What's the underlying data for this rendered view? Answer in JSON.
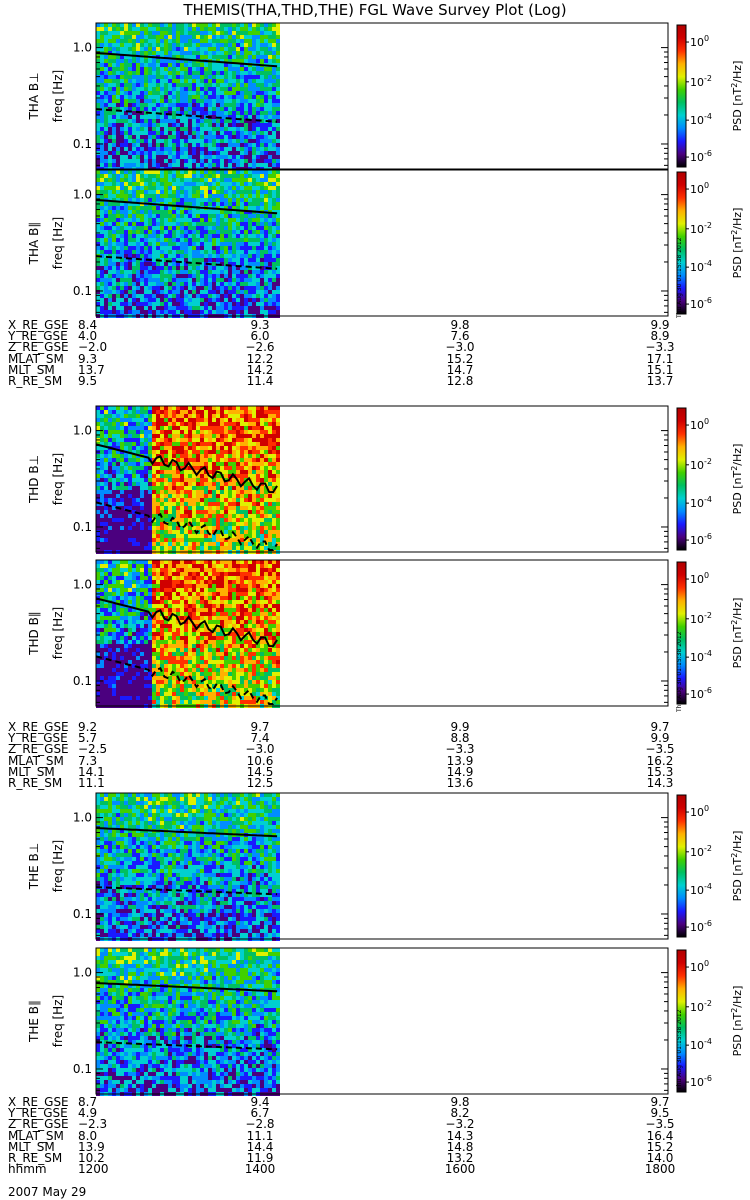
{
  "title": "THEMIS(THA,THD,THE) FGL Wave Survey Plot (Log)",
  "timestamp": "Thu Aug 30 01:15:38 2012",
  "colorbar": {
    "label_main": "PSD [nT",
    "label_sup": "2",
    "label_end": "/Hz]",
    "ticks": [
      {
        "base": "10",
        "exp": "0"
      },
      {
        "base": "10",
        "exp": "-2"
      },
      {
        "base": "10",
        "exp": "-4"
      },
      {
        "base": "10",
        "exp": "-6"
      }
    ],
    "colors": [
      "#000000",
      "#4b007f",
      "#1a1aff",
      "#008cff",
      "#00d0d0",
      "#00c060",
      "#40d000",
      "#e0f000",
      "#ffb000",
      "#ff3000",
      "#d00000",
      "#b00000"
    ]
  },
  "chart_data": [
    {
      "type": "heatmap",
      "probe": "THA",
      "ylabel": "THA B⊥",
      "ylabel2": "freq [Hz]",
      "yticks": [
        "1.0",
        "0.1"
      ],
      "yscale": "log",
      "ylim": [
        0.055,
        1.8
      ],
      "xlim": [
        1200,
        1800
      ],
      "data_end": 1390,
      "solid_line": [
        0.88,
        0.64
      ],
      "dashed_line": [
        0.23,
        0.17
      ],
      "noisy": false
    },
    {
      "type": "heatmap",
      "probe": "THA",
      "ylabel": "THA B∥",
      "ylabel2": "freq [Hz]",
      "yticks": [
        "1.0",
        "0.1"
      ],
      "yscale": "log",
      "ylim": [
        0.055,
        1.8
      ],
      "xlim": [
        1200,
        1800
      ],
      "data_end": 1390,
      "solid_line": [
        0.88,
        0.64
      ],
      "dashed_line": [
        0.23,
        0.17
      ],
      "noisy": false
    },
    {
      "type": "heatmap",
      "probe": "THD",
      "ylabel": "THD B⊥",
      "ylabel2": "freq [Hz]",
      "yticks": [
        "1.0",
        "0.1"
      ],
      "yscale": "log",
      "ylim": [
        0.055,
        1.8
      ],
      "xlim": [
        1200,
        1800
      ],
      "data_end": 1390,
      "solid_line": [
        0.72,
        0.24
      ],
      "dashed_line": [
        0.18,
        0.06
      ],
      "noisy": true
    },
    {
      "type": "heatmap",
      "probe": "THD",
      "ylabel": "THD B∥",
      "ylabel2": "freq [Hz]",
      "yticks": [
        "1.0",
        "0.1"
      ],
      "yscale": "log",
      "ylim": [
        0.055,
        1.8
      ],
      "xlim": [
        1200,
        1800
      ],
      "data_end": 1390,
      "solid_line": [
        0.72,
        0.24
      ],
      "dashed_line": [
        0.18,
        0.06
      ],
      "noisy": true
    },
    {
      "type": "heatmap",
      "probe": "THE",
      "ylabel": "THE B⊥",
      "ylabel2": "freq [Hz]",
      "yticks": [
        "1.0",
        "0.1"
      ],
      "yscale": "log",
      "ylim": [
        0.055,
        1.8
      ],
      "xlim": [
        1200,
        1800
      ],
      "data_end": 1390,
      "solid_line": [
        0.78,
        0.64
      ],
      "dashed_line": [
        0.19,
        0.16
      ],
      "noisy": false
    },
    {
      "type": "heatmap",
      "probe": "THE",
      "ylabel": "THE B∥",
      "ylabel2": "freq [Hz]",
      "yticks": [
        "1.0",
        "0.1"
      ],
      "yscale": "log",
      "ylim": [
        0.055,
        1.8
      ],
      "xlim": [
        1200,
        1800
      ],
      "data_end": 1390,
      "solid_line": [
        0.78,
        0.64
      ],
      "dashed_line": [
        0.19,
        0.16
      ],
      "noisy": false
    }
  ],
  "orbit_blocks": [
    {
      "rows": [
        {
          "label": "X_RE_GSE",
          "values": [
            "8.4",
            "9.3",
            "9.8",
            "9.9"
          ]
        },
        {
          "label": "Y_RE_GSE",
          "values": [
            "4.0",
            "6.0",
            "7.6",
            "8.9"
          ]
        },
        {
          "label": "Z_RE_GSE",
          "values": [
            "−2.0",
            "−2.6",
            "−3.0",
            "−3.3"
          ]
        },
        {
          "label": "MLAT_SM",
          "values": [
            "9.3",
            "12.2",
            "15.2",
            "17.1"
          ]
        },
        {
          "label": "MLT_SM",
          "values": [
            "13.7",
            "14.2",
            "14.7",
            "15.1"
          ]
        },
        {
          "label": "R_RE_SM",
          "values": [
            "9.5",
            "11.4",
            "12.8",
            "13.7"
          ]
        }
      ]
    },
    {
      "rows": [
        {
          "label": "X_RE_GSE",
          "values": [
            "9.2",
            "9.7",
            "9.9",
            "9.7"
          ]
        },
        {
          "label": "Y_RE_GSE",
          "values": [
            "5.7",
            "7.4",
            "8.8",
            "9.9"
          ]
        },
        {
          "label": "Z_RE_GSE",
          "values": [
            "−2.5",
            "−3.0",
            "−3.3",
            "−3.5"
          ]
        },
        {
          "label": "MLAT_SM",
          "values": [
            "7.3",
            "10.6",
            "13.9",
            "16.2"
          ]
        },
        {
          "label": "MLT_SM",
          "values": [
            "14.1",
            "14.5",
            "14.9",
            "15.3"
          ]
        },
        {
          "label": "R_RE_SM",
          "values": [
            "11.1",
            "12.5",
            "13.6",
            "14.3"
          ]
        }
      ]
    },
    {
      "rows": [
        {
          "label": "X_RE_GSE",
          "values": [
            "8.7",
            "9.4",
            "9.8",
            "9.7"
          ]
        },
        {
          "label": "Y_RE_GSE",
          "values": [
            "4.9",
            "6.7",
            "8.2",
            "9.5"
          ]
        },
        {
          "label": "Z_RE_GSE",
          "values": [
            "−2.3",
            "−2.8",
            "−3.2",
            "−3.5"
          ]
        },
        {
          "label": "MLAT_SM",
          "values": [
            "8.0",
            "11.1",
            "14.3",
            "16.4"
          ]
        },
        {
          "label": "MLT_SM",
          "values": [
            "13.9",
            "14.4",
            "14.8",
            "15.2"
          ]
        },
        {
          "label": "R_RE_SM",
          "values": [
            "10.2",
            "11.9",
            "13.2",
            "14.0"
          ]
        },
        {
          "label": "hhmm",
          "values": [
            "1200",
            "1400",
            "1600",
            "1800"
          ]
        }
      ]
    }
  ],
  "date_label": "2007 May 29"
}
